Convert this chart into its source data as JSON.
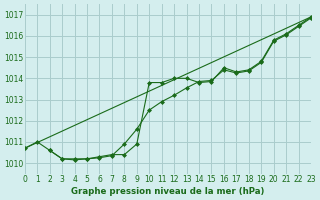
{
  "title": "Graphe pression niveau de la mer (hPa)",
  "bg_color": "#d4eeee",
  "grid_color": "#aacccc",
  "line_color": "#1a6b1a",
  "x_min": 0,
  "x_max": 23,
  "y_min": 1009.5,
  "y_max": 1017.5,
  "yticks": [
    1010,
    1011,
    1012,
    1013,
    1014,
    1015,
    1016,
    1017
  ],
  "xticks": [
    0,
    1,
    2,
    3,
    4,
    5,
    6,
    7,
    8,
    9,
    10,
    11,
    12,
    13,
    14,
    15,
    16,
    17,
    18,
    19,
    20,
    21,
    22,
    23
  ],
  "line1_x": [
    0,
    1,
    2,
    3,
    4,
    5,
    6,
    7,
    8,
    9,
    10,
    11,
    12,
    13,
    14,
    15,
    16,
    17,
    18,
    19,
    20,
    21,
    22,
    23
  ],
  "line1_y": [
    1010.7,
    1011.0,
    1010.6,
    1010.2,
    1010.2,
    1010.2,
    1010.3,
    1010.4,
    1010.4,
    1010.9,
    1013.8,
    1013.8,
    1014.0,
    1014.0,
    1013.8,
    1013.85,
    1014.5,
    1014.3,
    1014.4,
    1014.8,
    1015.8,
    1016.1,
    1016.5,
    1016.9
  ],
  "line2_x": [
    2,
    3,
    4,
    5,
    6,
    7,
    8,
    9,
    10,
    11,
    12,
    13,
    14,
    15,
    16,
    17,
    18,
    19,
    20,
    21,
    22,
    23
  ],
  "line2_y": [
    1010.6,
    1010.2,
    1010.15,
    1010.2,
    1010.25,
    1010.35,
    1010.9,
    1011.6,
    1012.5,
    1012.9,
    1013.2,
    1013.55,
    1013.85,
    1013.9,
    1014.4,
    1014.25,
    1014.35,
    1014.75,
    1015.75,
    1016.05,
    1016.45,
    1016.85
  ],
  "line3_x": [
    0,
    23
  ],
  "line3_y": [
    1010.7,
    1016.9
  ],
  "marker": "D",
  "markersize": 2.0,
  "label_fontsize": 5.5,
  "xlabel_fontsize": 6.2
}
